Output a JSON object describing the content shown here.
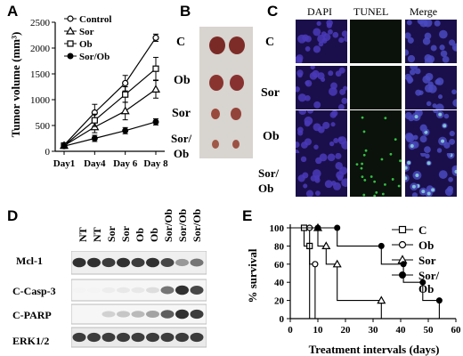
{
  "panels": {
    "A": "A",
    "B": "B",
    "C": "C",
    "D": "D",
    "E": "E"
  },
  "panel_a": {
    "ylabel": "Tumor volume (mm³)",
    "chart_data": {
      "type": "line",
      "categories": [
        "Day1",
        "Day4",
        "Day 6",
        "Day 8"
      ],
      "ylabel": "Tumor volume (mm³)",
      "ylim": [
        0,
        2500
      ],
      "yticks": [
        0,
        500,
        1000,
        1500,
        2000,
        2500
      ],
      "legend": "top-left",
      "series": [
        {
          "name": "Control",
          "marker": "open-circle",
          "values": [
            120,
            750,
            1320,
            2200
          ],
          "err": [
            20,
            160,
            150,
            70
          ]
        },
        {
          "name": "Sor",
          "marker": "open-triangle",
          "values": [
            110,
            470,
            780,
            1200
          ],
          "err": [
            20,
            110,
            170,
            170
          ]
        },
        {
          "name": "Ob",
          "marker": "open-square",
          "values": [
            110,
            600,
            1100,
            1600
          ],
          "err": [
            20,
            120,
            150,
            220
          ]
        },
        {
          "name": "Sor/Ob",
          "marker": "filled-circle",
          "values": [
            100,
            250,
            400,
            570
          ],
          "err": [
            15,
            60,
            60,
            60
          ]
        }
      ]
    }
  },
  "panel_b": {
    "labels": [
      "C",
      "Ob",
      "Sor",
      "Sor/\nOb"
    ]
  },
  "panel_c": {
    "columns": [
      "DAPI",
      "TUNEL",
      "Merge"
    ],
    "rows": [
      "C",
      "Sor",
      "Ob",
      "Sor/\nOb"
    ]
  },
  "panel_d": {
    "lanes": [
      "NT",
      "NT",
      "Sor",
      "Sor",
      "Ob",
      "Ob",
      "Sor/Ob",
      "Sor/Ob",
      "Sor/Ob"
    ],
    "blots": [
      "Mcl-1",
      "C-Casp-3",
      "C-PARP",
      "ERK1/2"
    ]
  },
  "panel_e": {
    "chart_data": {
      "type": "line",
      "step": true,
      "xlabel": "Treatment intervals (days)",
      "ylabel": "% survival",
      "xlim": [
        0,
        60
      ],
      "ylim": [
        0,
        100
      ],
      "xticks": [
        0,
        10,
        20,
        30,
        40,
        50,
        60
      ],
      "yticks": [
        0,
        20,
        40,
        60,
        80,
        100
      ],
      "legend": "top-right",
      "series": [
        {
          "name": "C",
          "marker": "open-square",
          "x": [
            0,
            5,
            7
          ],
          "y": [
            100,
            80,
            0
          ]
        },
        {
          "name": "Ob",
          "marker": "open-circle",
          "x": [
            0,
            7,
            9
          ],
          "y": [
            100,
            60,
            0
          ]
        },
        {
          "name": "Sor",
          "marker": "open-triangle",
          "x": [
            0,
            10,
            13,
            17,
            33
          ],
          "y": [
            100,
            80,
            60,
            20,
            0
          ]
        },
        {
          "name": "Sor/\nOb",
          "marker": "filled-circle",
          "x": [
            0,
            10,
            17,
            33,
            41,
            48,
            54
          ],
          "y": [
            100,
            100,
            80,
            60,
            40,
            20,
            0
          ]
        }
      ]
    }
  }
}
